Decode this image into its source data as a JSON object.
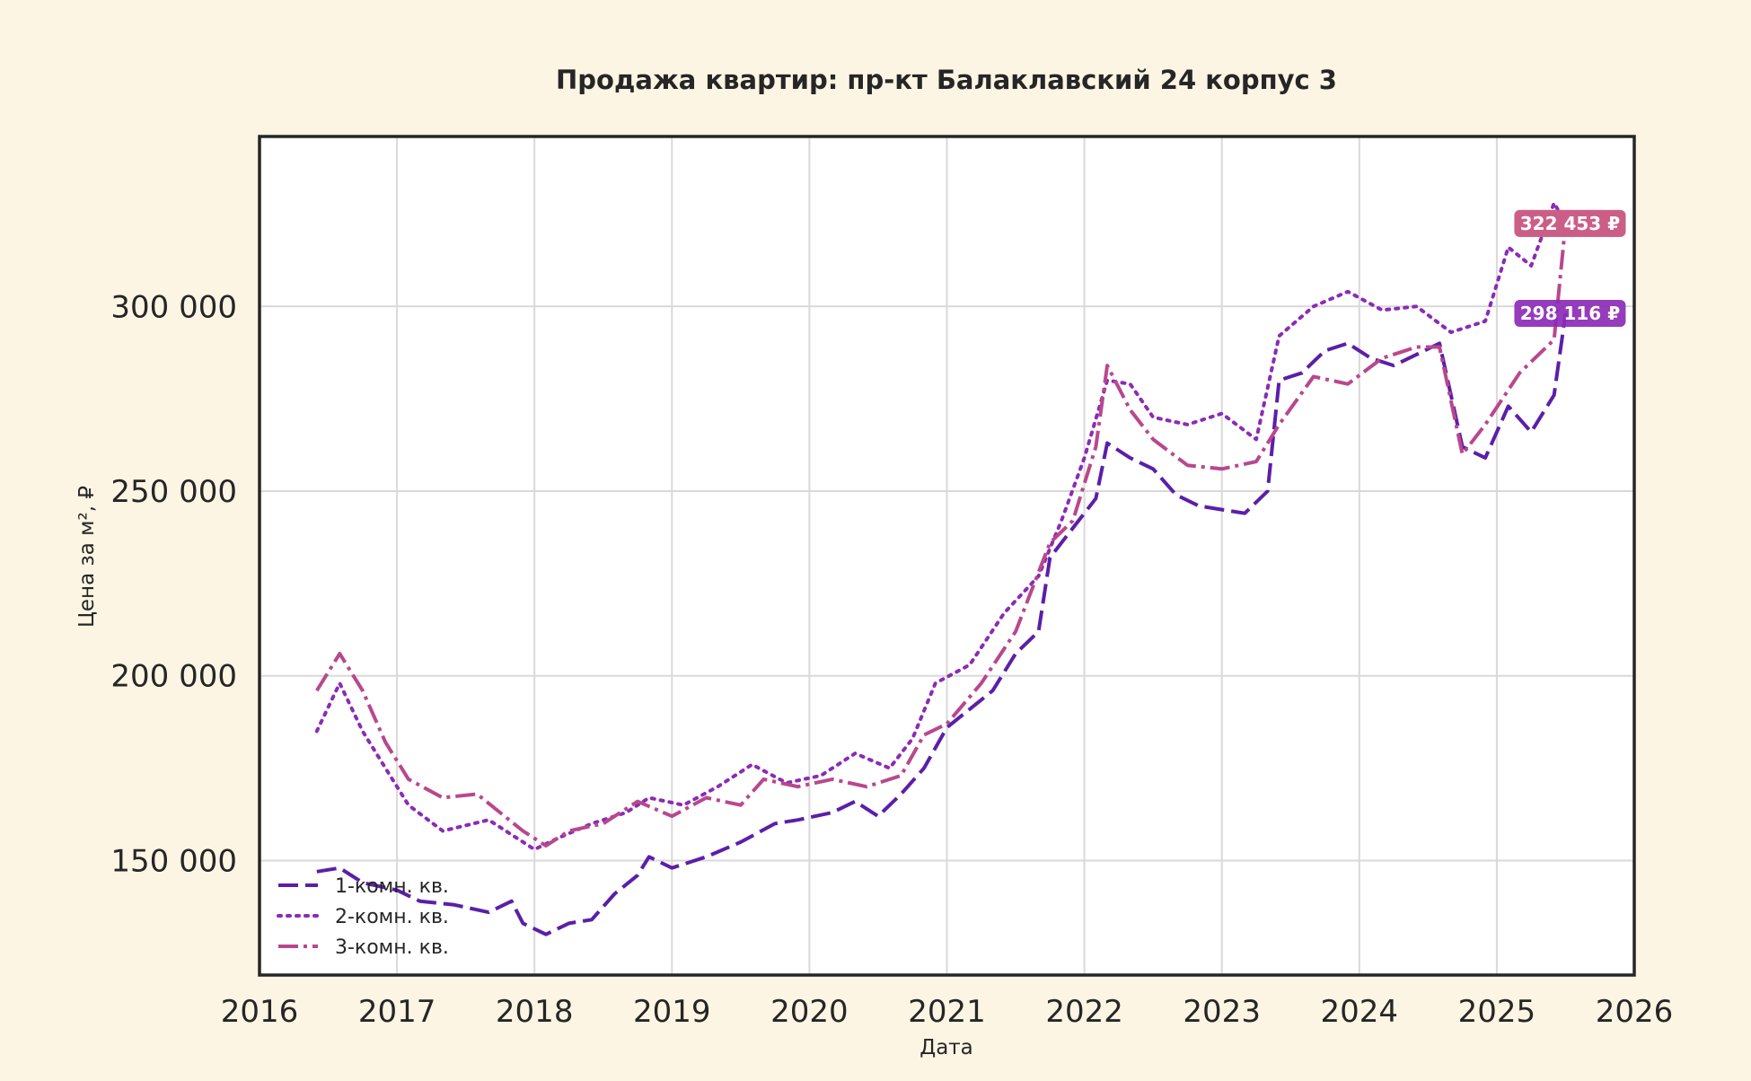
{
  "background_color": "#fcf5e3",
  "chart_data": {
    "type": "line",
    "title": "Продажа квартир: пр-кт Балаклавский 24 корпус 3",
    "xlabel": "Дата",
    "ylabel": "Цена за м², ₽",
    "xlim": [
      "2016-01-01",
      "2026-01-01"
    ],
    "ylim": [
      119000,
      346000
    ],
    "x_ticks": [
      "2016",
      "2017",
      "2018",
      "2019",
      "2020",
      "2021",
      "2022",
      "2023",
      "2024",
      "2025",
      "2026"
    ],
    "y_ticks": [
      150000,
      200000,
      250000,
      300000
    ],
    "y_tick_labels": [
      "150 000",
      "200 000",
      "250 000",
      "300 000"
    ],
    "grid": true,
    "legend_position": "bottom-left",
    "series": [
      {
        "name": "1-комн. кв.",
        "color": "#5b1fa8",
        "line_style": "dashed",
        "points": [
          [
            "2016-06",
            147000
          ],
          [
            "2016-08",
            148000
          ],
          [
            "2016-10",
            144000
          ],
          [
            "2017-01",
            142000
          ],
          [
            "2017-03",
            139000
          ],
          [
            "2017-06",
            138000
          ],
          [
            "2017-09",
            136000
          ],
          [
            "2017-11",
            139000
          ],
          [
            "2017-12",
            133000
          ],
          [
            "2018-02",
            130000
          ],
          [
            "2018-04",
            133000
          ],
          [
            "2018-06",
            134000
          ],
          [
            "2018-08",
            141000
          ],
          [
            "2018-10",
            146000
          ],
          [
            "2018-11",
            151000
          ],
          [
            "2019-01",
            148000
          ],
          [
            "2019-04",
            151000
          ],
          [
            "2019-07",
            155000
          ],
          [
            "2019-10",
            160000
          ],
          [
            "2019-12",
            161000
          ],
          [
            "2020-03",
            163000
          ],
          [
            "2020-05",
            166000
          ],
          [
            "2020-07",
            162000
          ],
          [
            "2020-09",
            168000
          ],
          [
            "2020-11",
            175000
          ],
          [
            "2021-01",
            186000
          ],
          [
            "2021-03",
            191000
          ],
          [
            "2021-05",
            196000
          ],
          [
            "2021-07",
            206000
          ],
          [
            "2021-09",
            212000
          ],
          [
            "2021-10",
            232000
          ],
          [
            "2021-12",
            240000
          ],
          [
            "2022-02",
            248000
          ],
          [
            "2022-03",
            263000
          ],
          [
            "2022-05",
            259000
          ],
          [
            "2022-07",
            256000
          ],
          [
            "2022-09",
            249000
          ],
          [
            "2022-11",
            246000
          ],
          [
            "2023-01",
            245000
          ],
          [
            "2023-03",
            244000
          ],
          [
            "2023-05",
            250000
          ],
          [
            "2023-06",
            280000
          ],
          [
            "2023-08",
            282000
          ],
          [
            "2023-10",
            288000
          ],
          [
            "2023-12",
            290000
          ],
          [
            "2024-02",
            286000
          ],
          [
            "2024-04",
            284000
          ],
          [
            "2024-06",
            287000
          ],
          [
            "2024-08",
            290000
          ],
          [
            "2024-10",
            262000
          ],
          [
            "2024-12",
            259000
          ],
          [
            "2025-02",
            273000
          ],
          [
            "2025-04",
            266000
          ],
          [
            "2025-06",
            276000
          ],
          [
            "2025-07",
            298116
          ]
        ]
      },
      {
        "name": "2-комн. кв.",
        "color": "#8b2bb5",
        "line_style": "dotted",
        "points": [
          [
            "2016-06",
            185000
          ],
          [
            "2016-08",
            198000
          ],
          [
            "2016-10",
            185000
          ],
          [
            "2016-12",
            175000
          ],
          [
            "2017-02",
            165000
          ],
          [
            "2017-05",
            158000
          ],
          [
            "2017-09",
            161000
          ],
          [
            "2017-11",
            157000
          ],
          [
            "2018-01",
            153000
          ],
          [
            "2018-03",
            156000
          ],
          [
            "2018-06",
            160000
          ],
          [
            "2018-09",
            163000
          ],
          [
            "2018-11",
            167000
          ],
          [
            "2019-02",
            165000
          ],
          [
            "2019-05",
            170000
          ],
          [
            "2019-08",
            176000
          ],
          [
            "2019-11",
            171000
          ],
          [
            "2020-02",
            173000
          ],
          [
            "2020-05",
            179000
          ],
          [
            "2020-08",
            175000
          ],
          [
            "2020-10",
            183000
          ],
          [
            "2020-12",
            198000
          ],
          [
            "2021-03",
            203000
          ],
          [
            "2021-06",
            217000
          ],
          [
            "2021-09",
            227000
          ],
          [
            "2021-11",
            242000
          ],
          [
            "2022-01",
            259000
          ],
          [
            "2022-03",
            280000
          ],
          [
            "2022-05",
            279000
          ],
          [
            "2022-07",
            270000
          ],
          [
            "2022-10",
            268000
          ],
          [
            "2023-01",
            271000
          ],
          [
            "2023-04",
            264000
          ],
          [
            "2023-06",
            292000
          ],
          [
            "2023-09",
            300000
          ],
          [
            "2023-12",
            304000
          ],
          [
            "2024-03",
            299000
          ],
          [
            "2024-06",
            300000
          ],
          [
            "2024-09",
            293000
          ],
          [
            "2024-12",
            296000
          ],
          [
            "2025-02",
            316000
          ],
          [
            "2025-04",
            311000
          ],
          [
            "2025-06",
            328000
          ],
          [
            "2025-07",
            322453
          ]
        ]
      },
      {
        "name": "3-комн. кв.",
        "color": "#b8488e",
        "line_style": "dashdot",
        "points": [
          [
            "2016-06",
            196000
          ],
          [
            "2016-08",
            206000
          ],
          [
            "2016-10",
            196000
          ],
          [
            "2016-12",
            182000
          ],
          [
            "2017-02",
            172000
          ],
          [
            "2017-05",
            167000
          ],
          [
            "2017-08",
            168000
          ],
          [
            "2017-10",
            163000
          ],
          [
            "2017-12",
            158000
          ],
          [
            "2018-02",
            154000
          ],
          [
            "2018-04",
            158000
          ],
          [
            "2018-07",
            160000
          ],
          [
            "2018-10",
            166000
          ],
          [
            "2019-01",
            162000
          ],
          [
            "2019-04",
            167000
          ],
          [
            "2019-07",
            165000
          ],
          [
            "2019-09",
            172000
          ],
          [
            "2019-12",
            170000
          ],
          [
            "2020-03",
            172000
          ],
          [
            "2020-06",
            170000
          ],
          [
            "2020-09",
            173000
          ],
          [
            "2020-11",
            184000
          ],
          [
            "2021-01",
            187000
          ],
          [
            "2021-04",
            198000
          ],
          [
            "2021-07",
            212000
          ],
          [
            "2021-10",
            236000
          ],
          [
            "2021-12",
            242000
          ],
          [
            "2022-02",
            262000
          ],
          [
            "2022-03",
            284000
          ],
          [
            "2022-05",
            272000
          ],
          [
            "2022-07",
            264000
          ],
          [
            "2022-10",
            257000
          ],
          [
            "2023-01",
            256000
          ],
          [
            "2023-04",
            258000
          ],
          [
            "2023-06",
            268000
          ],
          [
            "2023-09",
            281000
          ],
          [
            "2023-12",
            279000
          ],
          [
            "2024-03",
            286000
          ],
          [
            "2024-06",
            289000
          ],
          [
            "2024-08",
            289000
          ],
          [
            "2024-10",
            260000
          ],
          [
            "2024-12",
            268000
          ],
          [
            "2025-03",
            282000
          ],
          [
            "2025-06",
            291000
          ],
          [
            "2025-07",
            322453
          ]
        ]
      }
    ],
    "annotations": [
      {
        "text": "298 116 ₽",
        "series": "1-комн. кв.",
        "color": "#8b2bb5"
      },
      {
        "text": "322 453 ₽",
        "series": "3-комн. кв.",
        "color": "#e8845a"
      },
      {
        "text": "322 453 ₽",
        "series": "2-комн. кв.",
        "color": "#c85a8a"
      }
    ]
  }
}
